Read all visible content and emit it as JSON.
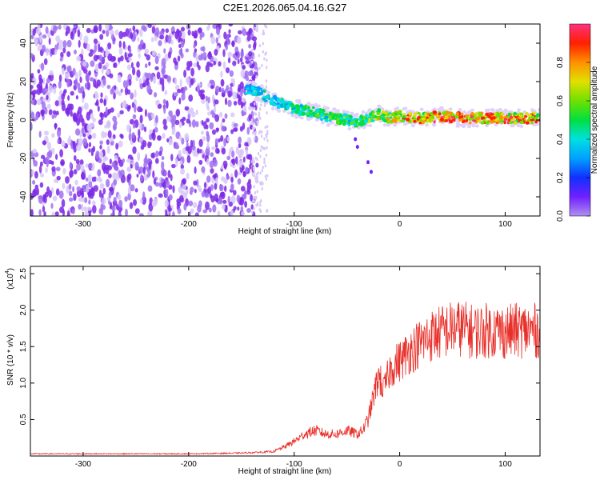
{
  "figure": {
    "title": "C2E1.2026.065.04.16.G27"
  },
  "colors": {
    "background": "#ffffff",
    "snr_line": "#e8302a",
    "spectrogram_noise": "#7c28e6",
    "colorbar_stops": [
      "#b090f0",
      "#7020ff",
      "#1030ff",
      "#00a0ff",
      "#00e0e0",
      "#00e040",
      "#70e000",
      "#e0e000",
      "#ff9000",
      "#ff2000",
      "#ff3080"
    ]
  },
  "chart_data": [
    {
      "type": "heatmap",
      "xlabel": "Height of straight line (km)",
      "ylabel": "Frequency (Hz)",
      "xlim": [
        -350,
        133
      ],
      "ylim": [
        -50,
        50
      ],
      "xticks": [
        -300,
        -200,
        -100,
        0,
        100
      ],
      "xtick_labels": [
        "-300",
        "-200",
        "-100",
        "0",
        "100"
      ],
      "yticks": [
        40,
        20,
        0,
        -20,
        -40
      ],
      "ytick_labels": [
        "40",
        "20",
        "0",
        "-20",
        "-40"
      ],
      "colorbar": {
        "label": "Normalized spectral amplitude",
        "range": [
          0,
          1
        ],
        "ticks": [
          0.0,
          0.2,
          0.4,
          0.6,
          0.8
        ],
        "tick_labels": [
          "0.0",
          "0.2",
          "0.4",
          "0.6",
          "0.8"
        ]
      },
      "noise_region": {
        "x_range": [
          -350,
          -135
        ],
        "level": 0.12
      },
      "signal_track": {
        "x": [
          -145,
          -135,
          -120,
          -110,
          -100,
          -90,
          -80,
          -70,
          -60,
          -50,
          -40,
          -30,
          -20,
          -10,
          0,
          20,
          40,
          60,
          80,
          100,
          120,
          133
        ],
        "y": [
          16,
          15,
          10,
          8,
          6,
          5,
          4,
          2,
          1,
          0,
          -1,
          1,
          3,
          1,
          2,
          1,
          2,
          1,
          1,
          1,
          1,
          1
        ],
        "amplitude": [
          0.4,
          0.45,
          0.4,
          0.45,
          0.5,
          0.5,
          0.55,
          0.55,
          0.6,
          0.55,
          0.6,
          0.65,
          0.7,
          0.7,
          0.8,
          0.85,
          0.9,
          0.9,
          0.95,
          0.9,
          0.85,
          0.85
        ]
      },
      "grid": false
    },
    {
      "type": "line",
      "xlabel": "Height of straight line (km)",
      "ylabel": "SNR (10 * v/v)",
      "y_scale_label": "(x10",
      "y_scale_exponent": "4",
      "xlim": [
        -350,
        133
      ],
      "ylim": [
        0,
        2.6
      ],
      "xticks": [
        -300,
        -200,
        -100,
        0,
        100
      ],
      "xtick_labels": [
        "-300",
        "-200",
        "-100",
        "0",
        "100"
      ],
      "yticks": [
        0.5,
        1.0,
        1.5,
        2.0,
        2.5
      ],
      "ytick_labels": [
        "0.5",
        "1.0",
        "1.5",
        "2.0",
        "2.5"
      ],
      "series": [
        {
          "x": [
            -350,
            -300,
            -250,
            -200,
            -150,
            -120,
            -110,
            -100,
            -90,
            -80,
            -70,
            -60,
            -50,
            -40,
            -35,
            -30,
            -25,
            -20,
            -15,
            -10,
            -5,
            0,
            10,
            20,
            30,
            40,
            50,
            60,
            70,
            80,
            90,
            100,
            110,
            120,
            133
          ],
          "y": [
            0.03,
            0.03,
            0.03,
            0.03,
            0.04,
            0.06,
            0.12,
            0.2,
            0.3,
            0.35,
            0.3,
            0.3,
            0.35,
            0.3,
            0.35,
            0.5,
            0.8,
            1.1,
            0.9,
            1.15,
            1.25,
            1.3,
            1.45,
            1.55,
            1.65,
            1.7,
            1.75,
            1.75,
            1.7,
            1.72,
            1.72,
            1.7,
            1.72,
            1.72,
            1.72
          ]
        }
      ],
      "grid": false
    }
  ]
}
